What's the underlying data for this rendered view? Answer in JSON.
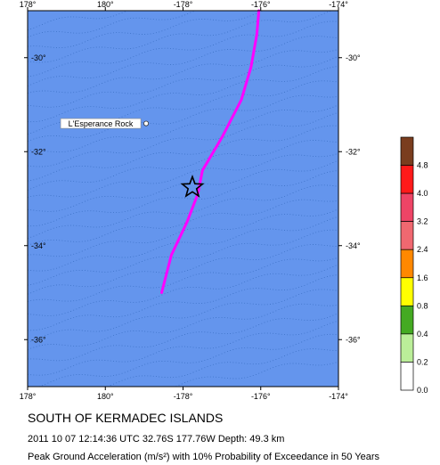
{
  "map": {
    "title": "SOUTH OF KERMADEC ISLANDS",
    "event_line": "2011 10 07 12:14:36 UTC 32.76S 177.76W Depth: 49.3 km",
    "description": "Peak Ground Acceleration (m/s²) with 10% Probability of Exceedance in 50 Years",
    "lon_range": [
      178,
      186
    ],
    "lat_range": [
      -37,
      -29
    ],
    "x_ticks": [
      {
        "lon": 178,
        "label": "178°"
      },
      {
        "lon": 180,
        "label": "180°"
      },
      {
        "lon": 182,
        "label": "-178°"
      },
      {
        "lon": 184,
        "label": "-176°"
      },
      {
        "lon": 186,
        "label": "-174°"
      }
    ],
    "y_ticks": [
      {
        "lat": -30,
        "label": "-30°"
      },
      {
        "lat": -32,
        "label": "-32°"
      },
      {
        "lat": -34,
        "label": "-34°"
      },
      {
        "lat": -36,
        "label": "-36°"
      }
    ],
    "water_color": "#6495ed",
    "epicenter": {
      "lon": 182.24,
      "lat": -32.76,
      "symbol": "star-icon"
    },
    "fault_color": "#ff00ff",
    "fault_line": [
      [
        183.95,
        -29.0
      ],
      [
        183.9,
        -29.5
      ],
      [
        183.75,
        -30.2
      ],
      [
        183.5,
        -30.9
      ],
      [
        183.0,
        -31.7
      ],
      [
        182.5,
        -32.4
      ],
      [
        182.38,
        -32.9
      ],
      [
        182.1,
        -33.5
      ],
      [
        181.7,
        -34.2
      ],
      [
        181.45,
        -35.0
      ]
    ],
    "places": [
      {
        "name": "L'Esperance Rock",
        "lon": 181.05,
        "lat": -31.4
      }
    ]
  },
  "legend": {
    "colors": [
      {
        "value": "4.8",
        "color": "#7a3d1e"
      },
      {
        "value": "4.0",
        "color": "#ff1a1a"
      },
      {
        "value": "3.2",
        "color": "#ee4466"
      },
      {
        "value": "2.4",
        "color": "#f06870"
      },
      {
        "value": "1.6",
        "color": "#ff8800"
      },
      {
        "value": "0.8",
        "color": "#ffff00"
      },
      {
        "value": "0.4",
        "color": "#44aa22"
      },
      {
        "value": "0.2",
        "color": "#bbee99"
      },
      {
        "value": "0.0",
        "color": "#ffffff"
      }
    ]
  }
}
